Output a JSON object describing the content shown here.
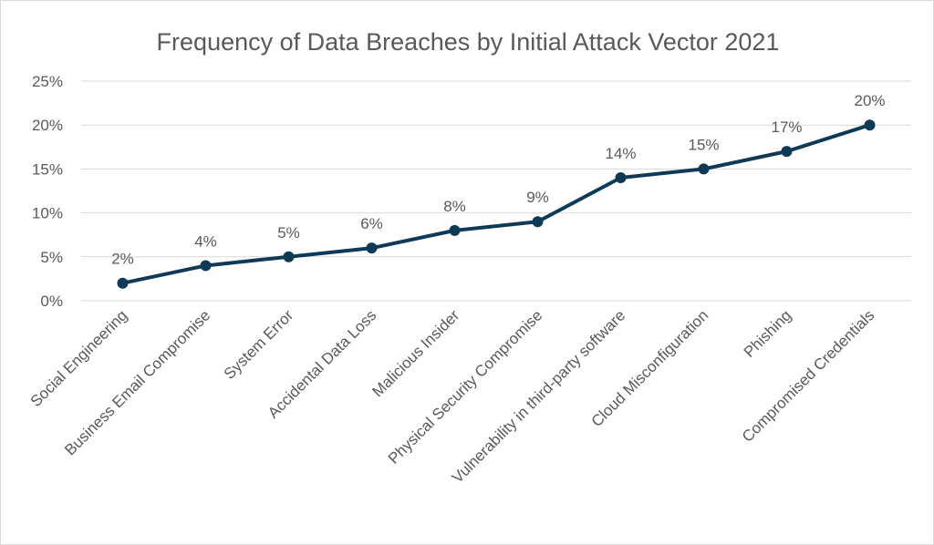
{
  "chart_data": {
    "type": "line",
    "title": "Frequency of Data Breaches by Initial Attack Vector 2021",
    "categories": [
      "Social Engineering",
      "Business Email Compromise",
      "System Error",
      "Accidental Data Loss",
      "Malicious Insider",
      "Physical Security Compromise",
      "Vulnerability in third-party software",
      "Cloud Misconfiguration",
      "Phishing",
      "Compromised Credentials"
    ],
    "values": [
      2,
      4,
      5,
      6,
      8,
      9,
      14,
      15,
      17,
      20
    ],
    "data_labels": [
      "2%",
      "4%",
      "5%",
      "6%",
      "8%",
      "9%",
      "14%",
      "15%",
      "17%",
      "20%"
    ],
    "ylim": [
      0,
      25
    ],
    "yticks": [
      "0%",
      "5%",
      "10%",
      "15%",
      "20%",
      "25%"
    ],
    "grid": true,
    "legend": "none",
    "line_color": "#0f3a57"
  }
}
